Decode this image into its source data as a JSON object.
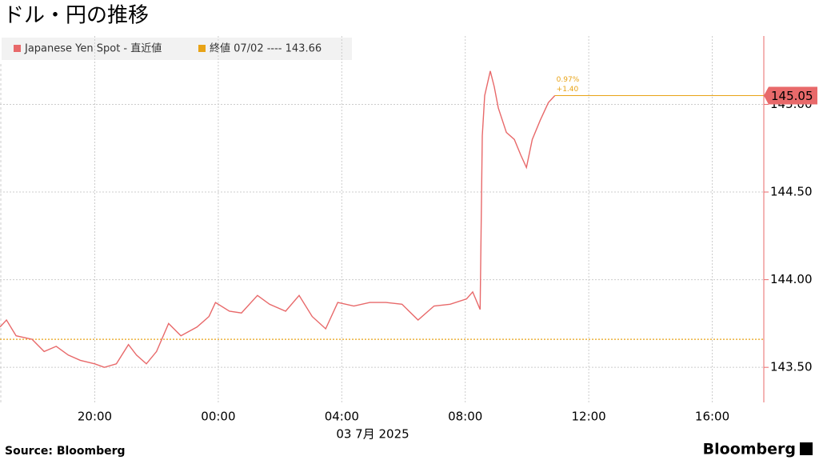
{
  "chart_data": {
    "type": "line",
    "title": "ドル・円の推移",
    "x_label": "03 7月 2025",
    "source": "Source:  Bloomberg",
    "brand": "Bloomberg",
    "x": [
      16.93,
      17.14,
      17.45,
      17.97,
      18.36,
      18.75,
      19.14,
      19.53,
      20.0,
      20.31,
      20.7,
      21.09,
      21.35,
      21.67,
      22.0,
      22.39,
      22.79,
      23.31,
      23.7,
      23.91,
      24.36,
      24.75,
      25.27,
      25.66,
      26.18,
      26.62,
      27.04,
      27.48,
      27.87,
      28.39,
      28.91,
      29.43,
      29.95,
      30.47,
      30.99,
      31.51,
      32.04,
      32.24,
      32.48,
      32.55,
      32.63,
      32.81,
      32.94,
      33.07,
      33.33,
      33.59,
      33.8,
      33.98,
      34.17,
      34.43,
      34.69,
      34.9
    ],
    "series": [
      {
        "name": "Japanese Yen Spot - 直近値",
        "color": "#e8696a",
        "values": [
          143.73,
          143.77,
          143.68,
          143.66,
          143.59,
          143.62,
          143.57,
          143.54,
          143.52,
          143.5,
          143.52,
          143.63,
          143.57,
          143.52,
          143.59,
          143.75,
          143.68,
          143.73,
          143.79,
          143.87,
          143.82,
          143.81,
          143.91,
          143.86,
          143.82,
          143.91,
          143.79,
          143.72,
          143.87,
          143.85,
          143.87,
          143.87,
          143.86,
          143.77,
          143.85,
          143.86,
          143.89,
          143.93,
          143.83,
          144.82,
          145.05,
          145.19,
          145.1,
          144.98,
          144.84,
          144.8,
          144.71,
          144.64,
          144.8,
          144.91,
          145.01,
          145.05
        ]
      }
    ],
    "last_value": 145.05,
    "change_pct": "0.97%",
    "change_abs": "+1.40",
    "prev_close": {
      "value": 143.66,
      "label": "終値 07/02 ---- 143.66",
      "color": "#e8a317"
    },
    "xlim": [
      16.93,
      41.67
    ],
    "xticks": [
      {
        "value": 20,
        "label": "20:00"
      },
      {
        "value": 24,
        "label": "00:00"
      },
      {
        "value": 28,
        "label": "04:00"
      },
      {
        "value": 32,
        "label": "08:00"
      },
      {
        "value": 36,
        "label": "12:00"
      },
      {
        "value": 40,
        "label": "16:00"
      }
    ],
    "ylim": [
      143.3,
      145.39
    ],
    "yticks": [
      {
        "value": 143.5,
        "label": "143.50"
      },
      {
        "value": 144,
        "label": "144.00"
      },
      {
        "value": 144.5,
        "label": "144.50"
      },
      {
        "value": 145,
        "label": "145.00"
      }
    ],
    "grid": true
  }
}
